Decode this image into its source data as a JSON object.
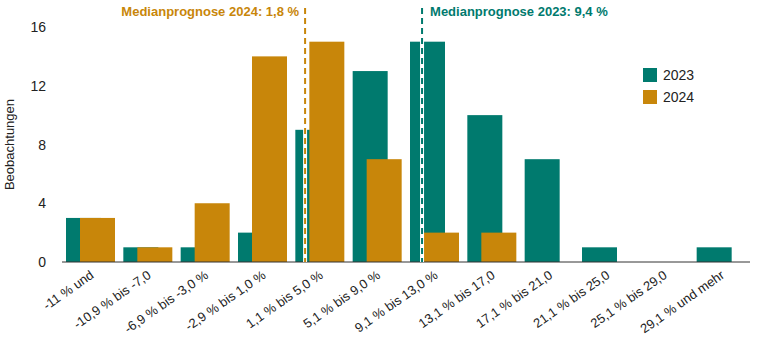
{
  "chart_data": {
    "type": "bar",
    "y_label": "Beobachtungen",
    "categories": [
      "-11 % und",
      "-10,9 % bis -7,0",
      "-6,9 % bis -3,0 %",
      "-2,9 % bis 1,0 %",
      "1,1 % bis 5,0 %",
      "5,1 % bis 9,0 %",
      "9,1 % bis 13,0 %",
      "13,1 % bis 17,0",
      "17,1 % bis 21,0",
      "21,1 % bis 25,0",
      "25,1 % bis 29,0",
      "29,1 % und mehr"
    ],
    "series": [
      {
        "name": "2023",
        "color": "#007a6e",
        "values": [
          3,
          1,
          1,
          2,
          9,
          13,
          15,
          10,
          7,
          1,
          0,
          1
        ]
      },
      {
        "name": "2024",
        "color": "#c8860a",
        "values": [
          3,
          1,
          4,
          14,
          15,
          7,
          2,
          2,
          0,
          0,
          0,
          0
        ]
      }
    ],
    "annotations": [
      {
        "text": "Medianprognose 2024: 1,8 %",
        "x": 3.74,
        "color": "#c8860a"
      },
      {
        "text": "Medianprognose 2023: 9,4 %",
        "x": 5.78,
        "color": "#007a6e"
      }
    ],
    "ylim": [
      0,
      16
    ],
    "yticks": [
      0,
      4,
      8,
      12,
      16
    ],
    "grid": false,
    "legend": "top-right"
  }
}
